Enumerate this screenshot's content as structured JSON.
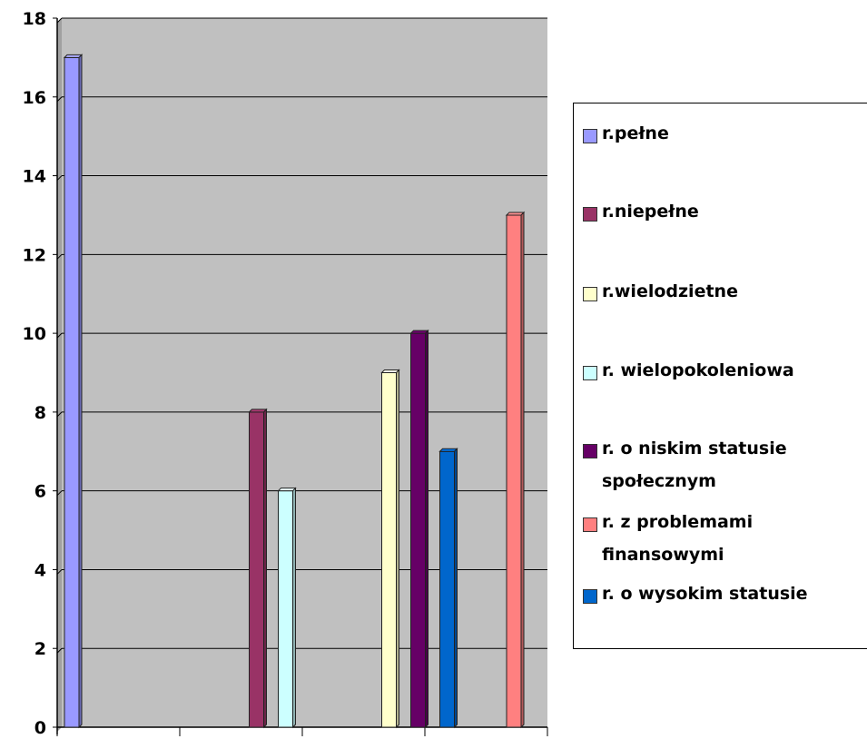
{
  "chart_data": {
    "type": "bar",
    "title": "",
    "xlabel": "",
    "ylabel": "",
    "ylim": [
      0,
      18
    ],
    "yticks": [
      "0",
      "2",
      "4",
      "6",
      "8",
      "10",
      "12",
      "14",
      "16",
      "18"
    ],
    "grid": true,
    "legend_position": "right",
    "plot_background": "#C0C0C0",
    "groups": 4,
    "series": [
      {
        "name": "r.pełne",
        "color": "#9999FF",
        "values": [
          17,
          null,
          null,
          null
        ]
      },
      {
        "name": "r.niepełne",
        "color": "#993366",
        "values": [
          null,
          8,
          null,
          null
        ]
      },
      {
        "name": "r.wielodzietne",
        "color": "#FFFFCC",
        "values": [
          null,
          null,
          9,
          null
        ]
      },
      {
        "name": "r. wielopokoleniowa",
        "color": "#CCFFFF",
        "values": [
          null,
          6,
          null,
          null
        ]
      },
      {
        "name": "r. o niskim statusie społecznym",
        "color": "#660066",
        "values": [
          null,
          null,
          10,
          null
        ]
      },
      {
        "name": "r. z problemami finansowymi",
        "color": "#FF8080",
        "values": [
          null,
          null,
          null,
          13
        ]
      },
      {
        "name": "r. o wysokim statusie",
        "color": "#0066CC",
        "values": [
          null,
          null,
          7,
          null
        ]
      }
    ],
    "bar_order": [
      0,
      1,
      3,
      2,
      4,
      6,
      5
    ]
  }
}
